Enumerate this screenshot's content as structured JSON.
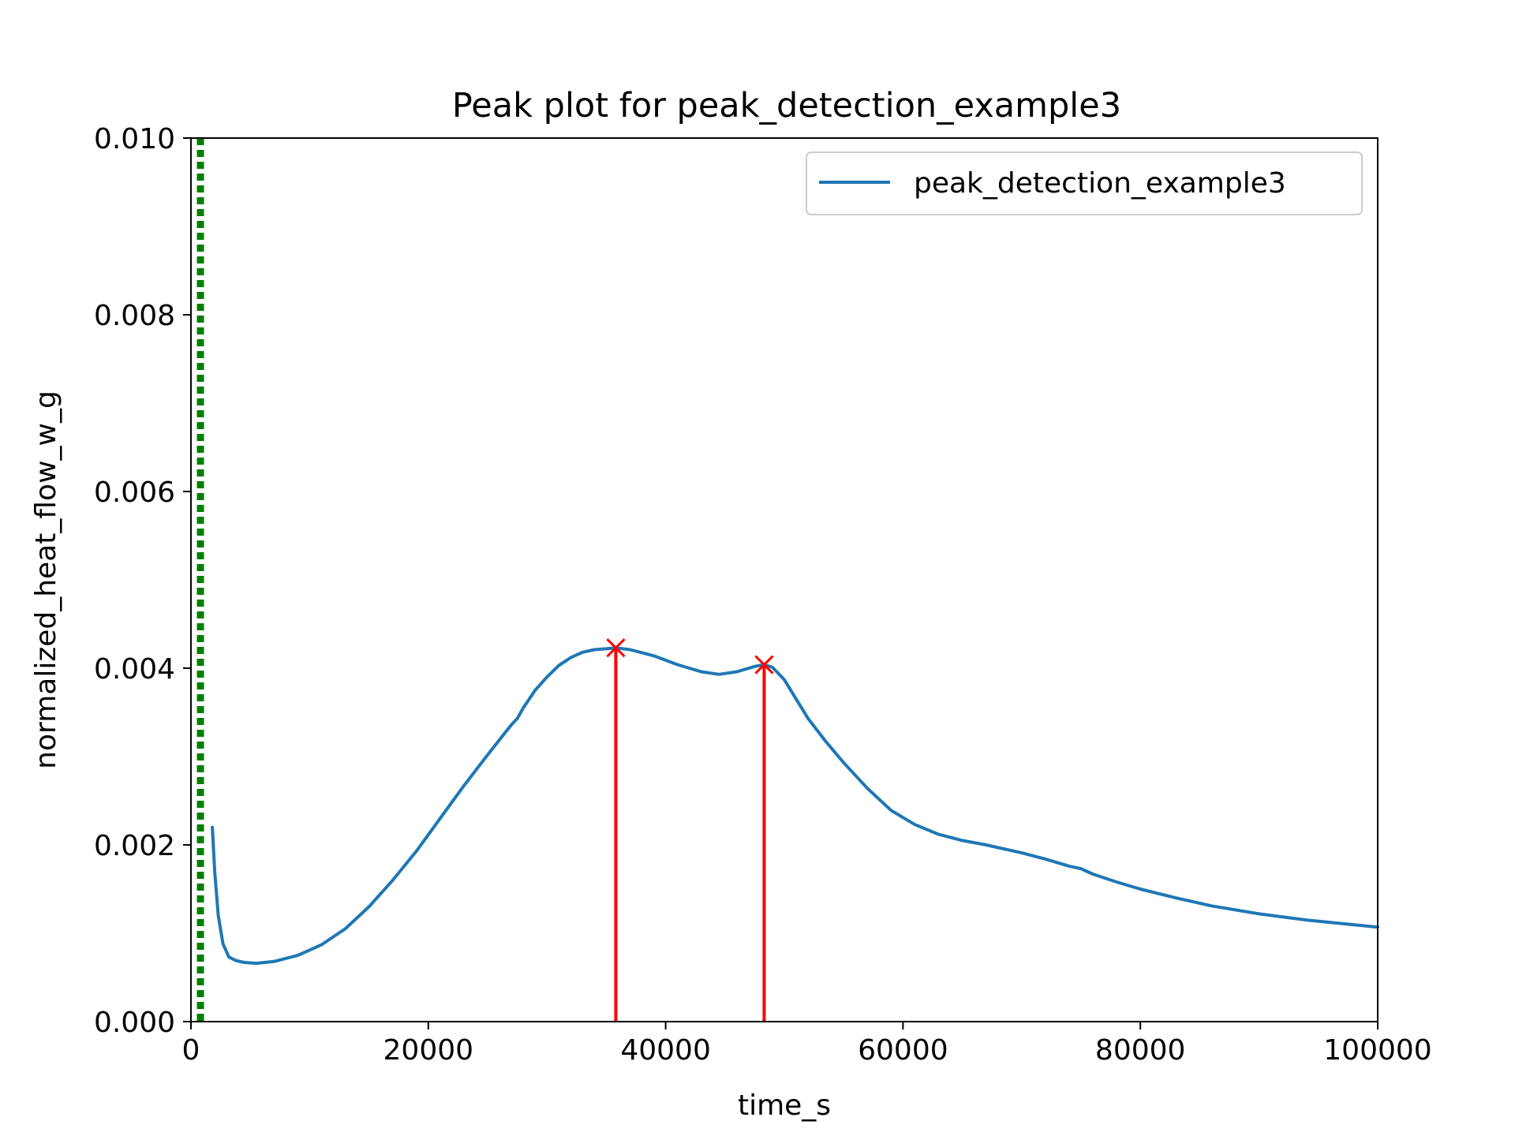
{
  "chart_data": {
    "type": "line",
    "title": "Peak plot for peak_detection_example3",
    "xlabel": "time_s",
    "ylabel": "normalized_heat_flow_w_g",
    "xlim": [
      0,
      100000
    ],
    "ylim": [
      0,
      0.01
    ],
    "xticks": [
      "0",
      "20000",
      "40000",
      "60000",
      "80000",
      "100000"
    ],
    "yticks": [
      "0.000",
      "0.002",
      "0.004",
      "0.006",
      "0.008",
      "0.010"
    ],
    "grid": false,
    "legend_position": "top-right",
    "series": [
      {
        "name": "peak_detection_example3",
        "color": "#1f77b4",
        "x": [
          1800,
          2000,
          2300,
          2700,
          3200,
          3800,
          4500,
          5500,
          7000,
          9000,
          11000,
          13000,
          15000,
          17000,
          19000,
          21000,
          23000,
          25000,
          27000,
          27500,
          28000,
          29000,
          30000,
          31000,
          32000,
          33000,
          34000,
          35000,
          35800,
          37000,
          39000,
          41000,
          43000,
          44500,
          46000,
          47500,
          48300,
          49000,
          50000,
          51000,
          52000,
          53500,
          55000,
          57000,
          59000,
          61000,
          63000,
          65000,
          67000,
          70000,
          72000,
          74000,
          75000,
          76000,
          78000,
          80000,
          83000,
          86000,
          90000,
          94000,
          97000,
          100000
        ],
        "y": [
          0.0022,
          0.0017,
          0.0012,
          0.00088,
          0.00073,
          0.00069,
          0.00067,
          0.00066,
          0.00068,
          0.00075,
          0.00087,
          0.00105,
          0.0013,
          0.0016,
          0.00193,
          0.0023,
          0.00267,
          0.00302,
          0.00336,
          0.00343,
          0.00355,
          0.00375,
          0.0039,
          0.00403,
          0.00412,
          0.00418,
          0.00421,
          0.00422,
          0.00423,
          0.00421,
          0.00414,
          0.00404,
          0.00396,
          0.00393,
          0.00396,
          0.00402,
          0.00404,
          0.00401,
          0.00387,
          0.00365,
          0.00343,
          0.00317,
          0.00293,
          0.00264,
          0.00239,
          0.00223,
          0.00212,
          0.00205,
          0.002,
          0.00191,
          0.00184,
          0.00176,
          0.00173,
          0.00167,
          0.00158,
          0.0015,
          0.0014,
          0.00131,
          0.00122,
          0.00115,
          0.00111,
          0.00107
        ]
      }
    ],
    "peaks": [
      {
        "x": 35800,
        "y": 0.00423,
        "color": "#ff0000",
        "marker": "x"
      },
      {
        "x": 48300,
        "y": 0.00404,
        "color": "#ff0000",
        "marker": "x"
      }
    ],
    "vertical_markers": [
      {
        "x": 800,
        "color": "#008000",
        "style": "dotted"
      }
    ]
  }
}
